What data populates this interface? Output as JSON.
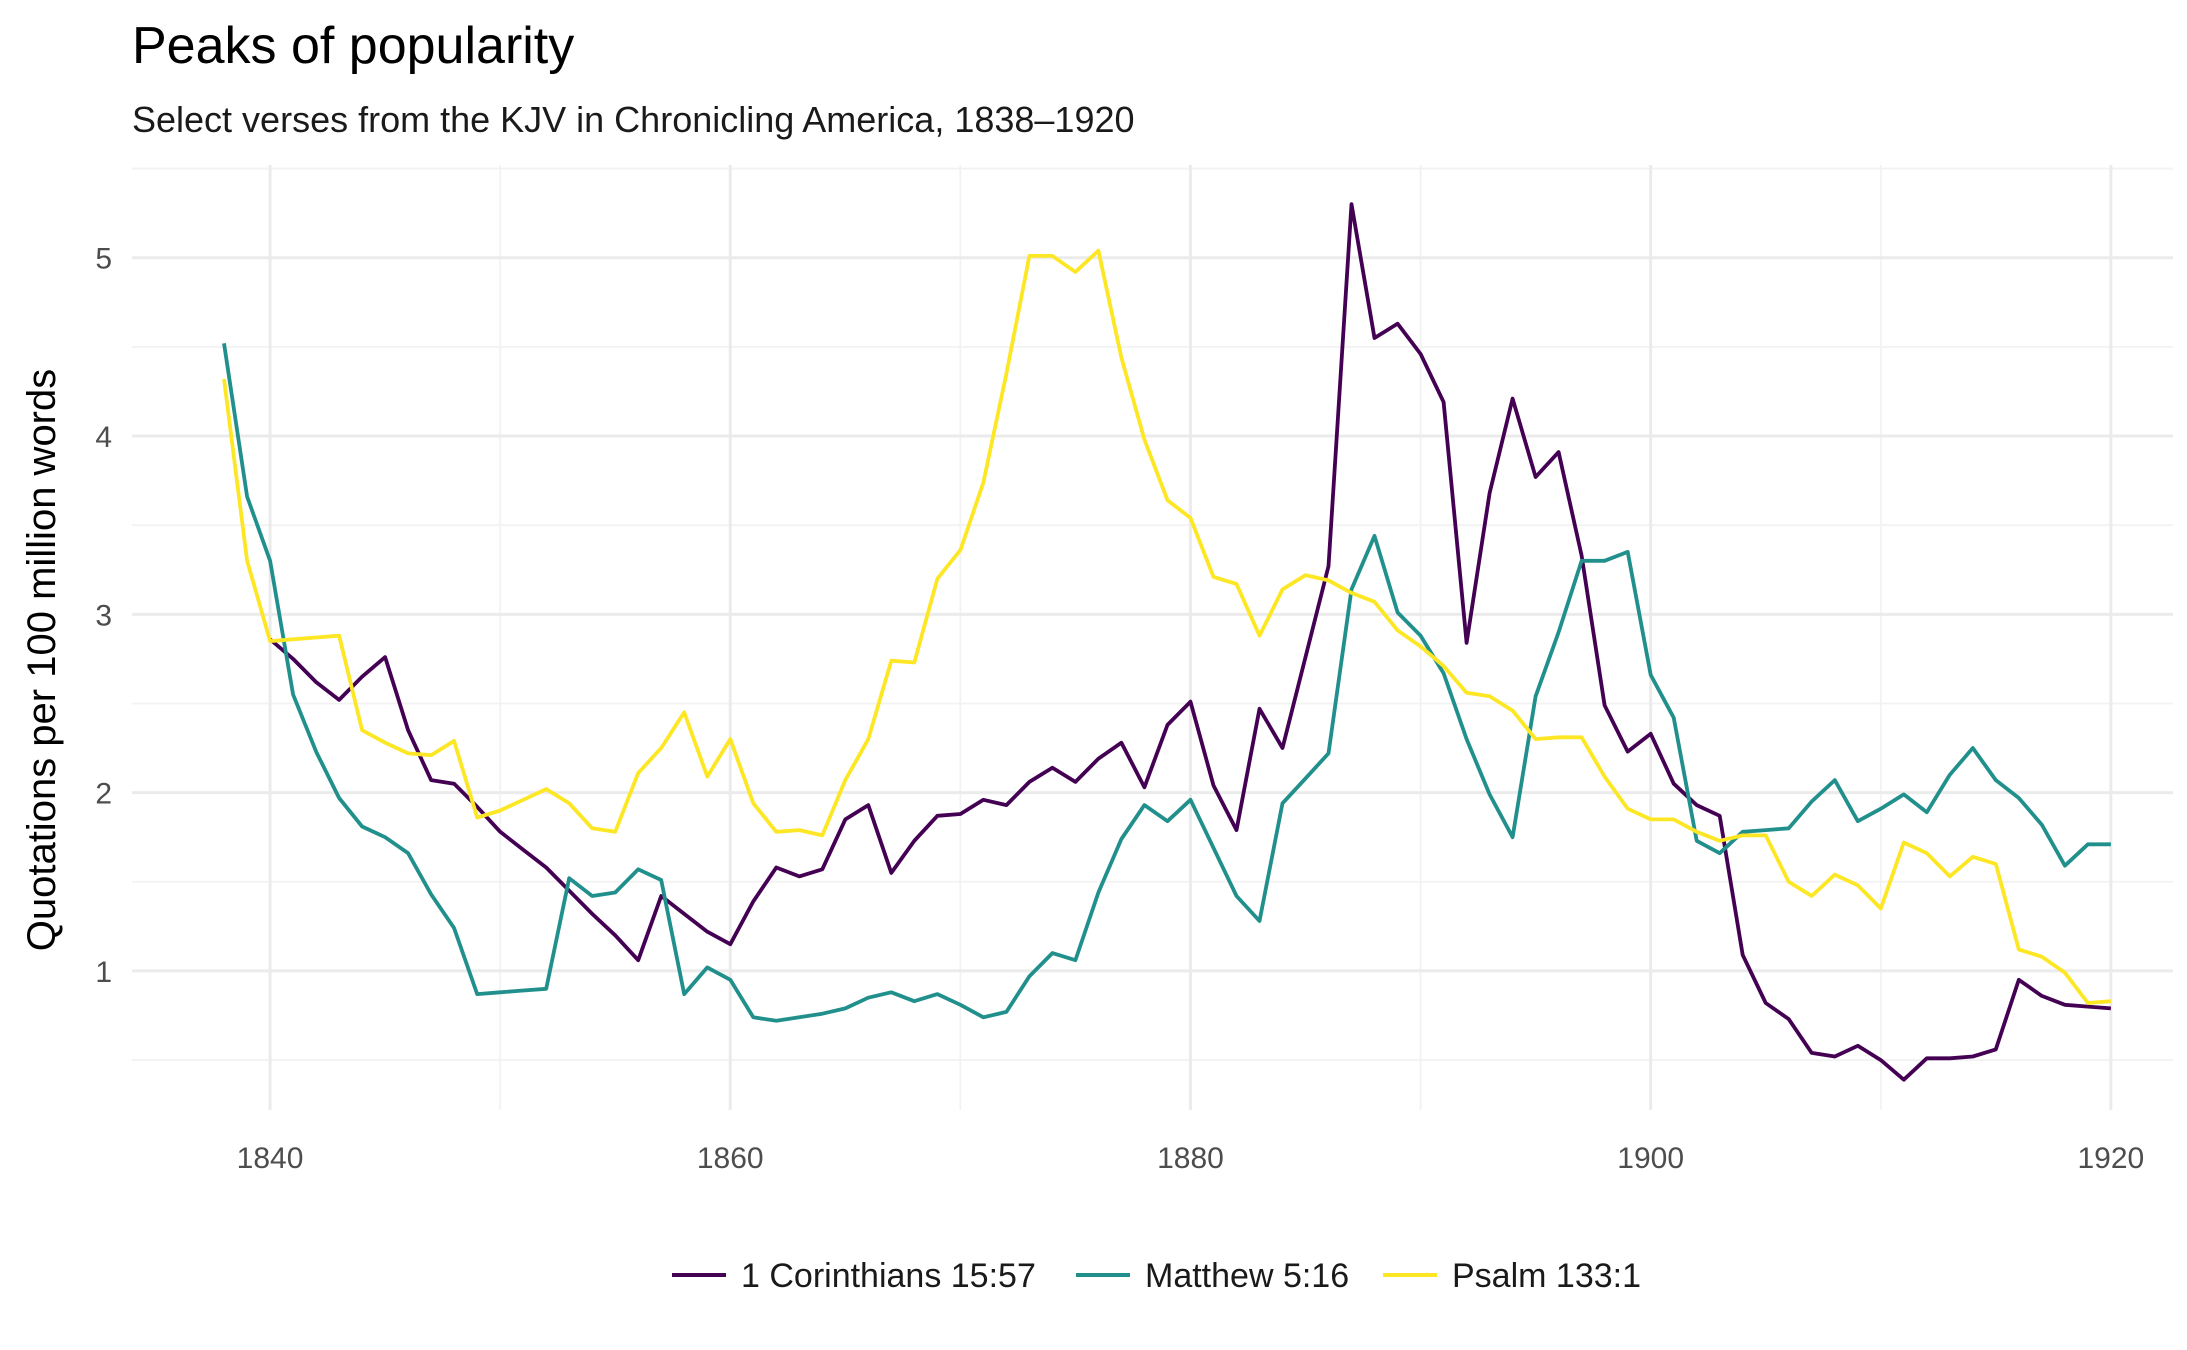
{
  "chart_data": {
    "type": "line",
    "title": "Peaks of popularity",
    "subtitle": "Select verses from the KJV in Chronicling America, 1838–1920",
    "xlabel": "",
    "ylabel": "Quotations per 100 million words",
    "xlim": [
      1834,
      1922.7
    ],
    "ylim": [
      0.22,
      5.52
    ],
    "x_ticks": [
      1840,
      1860,
      1880,
      1900,
      1920
    ],
    "y_ticks": [
      1,
      2,
      3,
      4,
      5
    ],
    "grid": true,
    "legend_position": "bottom",
    "x": [
      1838,
      1839,
      1840,
      1841,
      1842,
      1843,
      1844,
      1845,
      1846,
      1847,
      1848,
      1849,
      1850,
      1851,
      1852,
      1853,
      1854,
      1855,
      1856,
      1857,
      1858,
      1859,
      1860,
      1861,
      1862,
      1863,
      1864,
      1865,
      1866,
      1867,
      1868,
      1869,
      1870,
      1871,
      1872,
      1873,
      1874,
      1875,
      1876,
      1877,
      1878,
      1879,
      1880,
      1881,
      1882,
      1883,
      1884,
      1885,
      1886,
      1887,
      1888,
      1889,
      1890,
      1891,
      1892,
      1893,
      1894,
      1895,
      1896,
      1897,
      1898,
      1899,
      1900,
      1901,
      1902,
      1903,
      1904,
      1905,
      1906,
      1907,
      1908,
      1909,
      1910,
      1911,
      1912,
      1913,
      1914,
      1915,
      1916,
      1917,
      1918,
      1919,
      1920
    ],
    "series": [
      {
        "name": "1 Corinthians 15:57",
        "color": "#440154",
        "values": [
          null,
          null,
          2.86,
          2.75,
          2.62,
          2.52,
          2.65,
          2.76,
          2.35,
          2.07,
          2.05,
          1.92,
          1.78,
          1.68,
          1.58,
          1.45,
          1.32,
          1.2,
          1.06,
          1.42,
          1.32,
          1.22,
          1.15,
          1.39,
          1.58,
          1.53,
          1.57,
          1.85,
          1.93,
          1.55,
          1.73,
          1.87,
          1.88,
          1.96,
          1.93,
          2.06,
          2.14,
          2.06,
          2.19,
          2.28,
          2.03,
          2.38,
          2.51,
          2.04,
          1.79,
          2.47,
          2.25,
          2.76,
          3.27,
          5.3,
          4.55,
          4.63,
          4.46,
          4.19,
          2.84,
          3.68,
          4.21,
          3.77,
          3.91,
          3.33,
          2.49,
          2.23,
          2.33,
          2.05,
          1.93,
          1.87,
          1.09,
          0.82,
          0.73,
          0.54,
          0.52,
          0.58,
          0.5,
          0.39,
          0.51,
          0.51,
          0.52,
          0.56,
          0.95,
          0.86,
          0.81,
          0.8,
          0.79
        ]
      },
      {
        "name": "Matthew 5:16",
        "color": "#21908C",
        "values": [
          4.52,
          3.66,
          3.3,
          2.55,
          2.23,
          1.97,
          1.81,
          1.75,
          1.66,
          1.43,
          1.24,
          0.87,
          0.88,
          0.89,
          0.9,
          1.52,
          1.42,
          1.44,
          1.57,
          1.51,
          0.87,
          1.02,
          0.95,
          0.74,
          0.72,
          0.74,
          0.76,
          0.79,
          0.85,
          0.88,
          0.83,
          0.87,
          0.81,
          0.74,
          0.77,
          0.97,
          1.1,
          1.06,
          1.44,
          1.74,
          1.93,
          1.84,
          1.96,
          1.69,
          1.42,
          1.28,
          1.94,
          2.08,
          2.22,
          3.14,
          3.44,
          3.01,
          2.88,
          2.67,
          2.3,
          1.99,
          1.75,
          2.54,
          2.9,
          3.3,
          3.3,
          3.35,
          2.66,
          2.42,
          1.73,
          1.66,
          1.78,
          1.79,
          1.8,
          1.95,
          2.07,
          1.84,
          1.91,
          1.99,
          1.89,
          2.1,
          2.25,
          2.07,
          1.97,
          1.82,
          1.59,
          1.71,
          1.71
        ]
      },
      {
        "name": "Psalm 133:1",
        "color": "#FDE725",
        "values": [
          4.32,
          3.3,
          2.85,
          2.86,
          2.87,
          2.88,
          2.35,
          2.28,
          2.22,
          2.21,
          2.29,
          1.86,
          1.9,
          1.96,
          2.02,
          1.94,
          1.8,
          1.78,
          2.11,
          2.25,
          2.45,
          2.09,
          2.3,
          1.94,
          1.78,
          1.79,
          1.76,
          2.07,
          2.3,
          2.74,
          2.73,
          3.2,
          3.36,
          3.74,
          4.35,
          5.01,
          5.01,
          4.92,
          5.04,
          4.44,
          3.98,
          3.64,
          3.54,
          3.21,
          3.17,
          2.88,
          3.14,
          3.22,
          3.19,
          3.12,
          3.07,
          2.91,
          2.82,
          2.71,
          2.56,
          2.54,
          2.46,
          2.3,
          2.31,
          2.31,
          2.09,
          1.91,
          1.85,
          1.85,
          1.78,
          1.73,
          1.76,
          1.76,
          1.5,
          1.42,
          1.54,
          1.48,
          1.35,
          1.72,
          1.66,
          1.53,
          1.64,
          1.6,
          1.12,
          1.08,
          0.99,
          0.82,
          0.83
        ]
      }
    ]
  }
}
